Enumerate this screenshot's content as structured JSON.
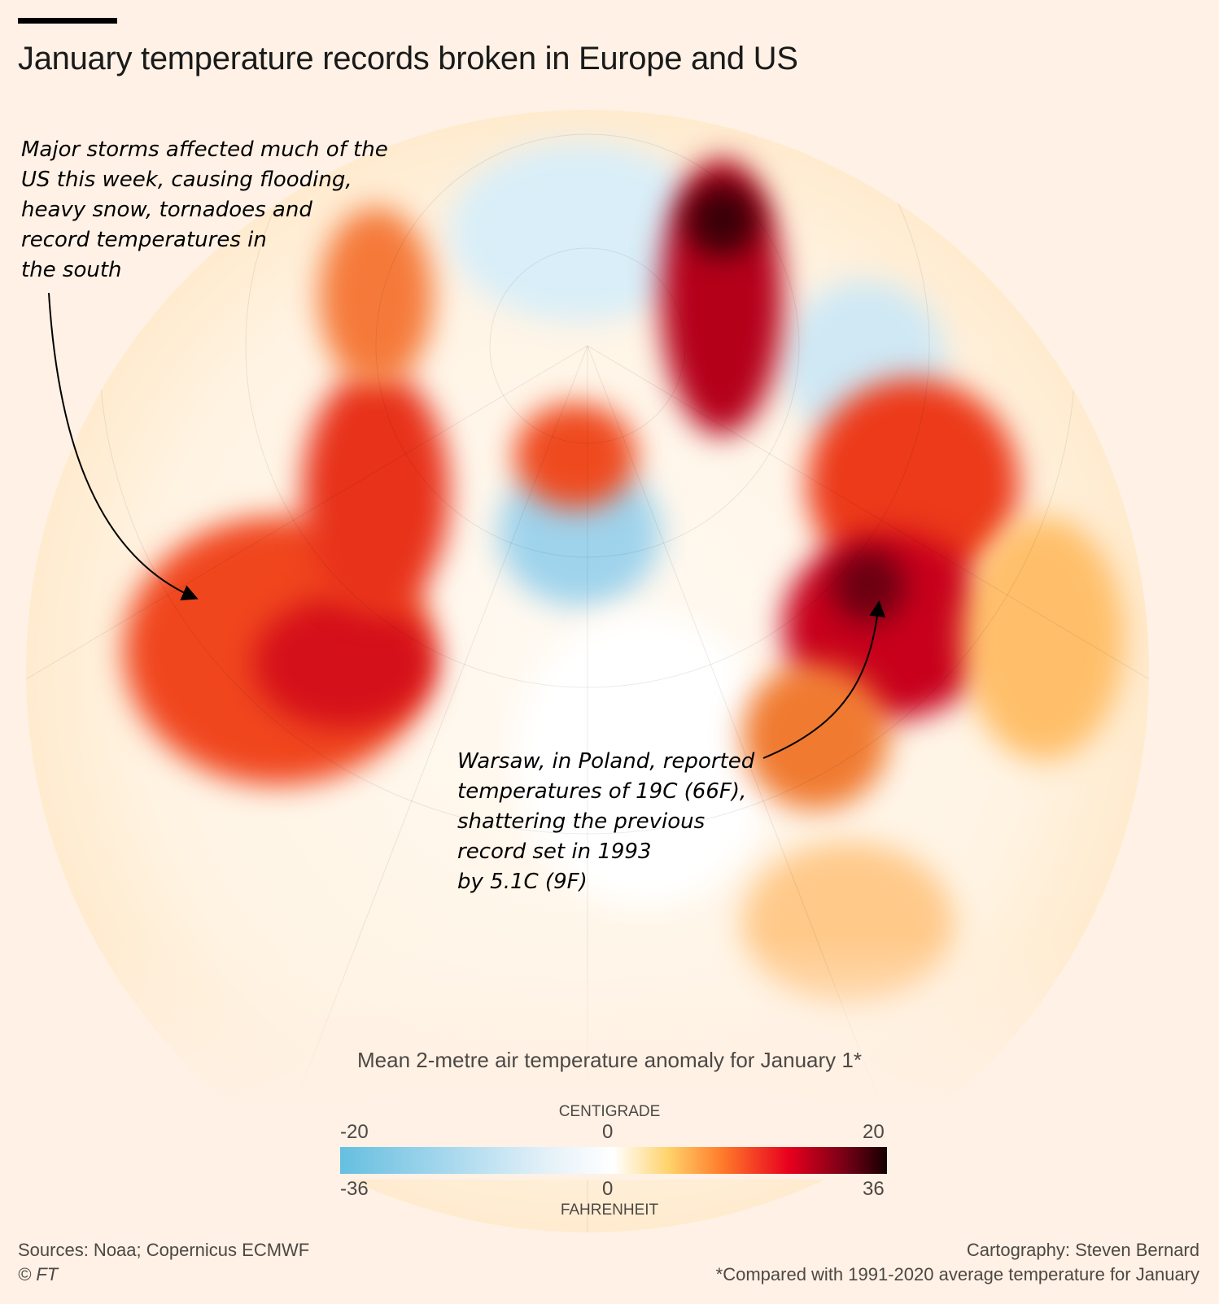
{
  "title": "January temperature records broken in Europe and US",
  "annotations": {
    "us": [
      "Major storms affected much of the",
      "US this week, causing flooding,",
      "heavy snow, tornadoes and",
      "record temperatures in",
      "the south"
    ],
    "warsaw": [
      "Warsaw, in Poland, reported",
      "temperatures of 19C (66F),",
      "shattering the previous",
      "record set in 1993",
      "by 5.1C (9F)"
    ]
  },
  "legend": {
    "title": "Mean 2-metre air temperature anomaly for January 1*",
    "celsius_label": "CENTIGRADE",
    "celsius_ticks": [
      "-20",
      "0",
      "20"
    ],
    "fahrenheit_label": "FAHRENHEIT",
    "fahrenheit_ticks": [
      "-36",
      "0",
      "36"
    ],
    "colors": [
      "#66bfdf",
      "#ffffff",
      "#ffd36b",
      "#ff7a2a",
      "#e8001e",
      "#150000"
    ]
  },
  "footer": {
    "sources": "Sources: Noaa; Copernicus ECMWF",
    "copyright": "© FT",
    "credit": "Cartography: Steven Bernard",
    "note": "*Compared with 1991-2020 average temperature for January"
  }
}
